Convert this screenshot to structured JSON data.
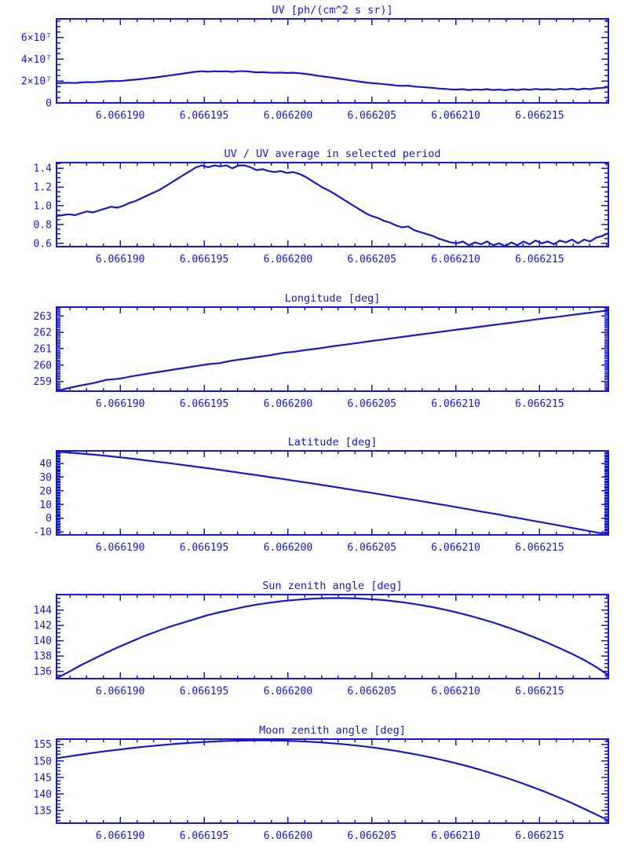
{
  "window": {
    "background": "#ffffff"
  },
  "style": {
    "plot_color": "#1717d2",
    "background": "#ffffff"
  },
  "chart_data": [
    {
      "id": "uv",
      "type": "line",
      "title": "UV [ph/(cm^2 s sr)]",
      "legend": "none",
      "grid": false,
      "x": {
        "lim": [
          6.0661862,
          6.0662191
        ],
        "major_ticks": [
          6.06619,
          6.066195,
          6.0662,
          6.066205,
          6.06621,
          6.066215
        ],
        "tick_labels": [
          "6.066190",
          "6.066195",
          "6.066200",
          "6.066205",
          "6.066210",
          "6.066215"
        ],
        "minor_step": 1e-06
      },
      "y": {
        "lim": [
          0,
          7.7
        ],
        "major_ticks": [
          0,
          2,
          4,
          6
        ],
        "tick_labels": [
          "0",
          "2×10⁷",
          "4×10⁷",
          "6×10⁷"
        ],
        "minor_step": 0.5,
        "values_unit": "10^7 ph/(cm^2 s sr)"
      },
      "values": [
        1.81,
        1.83,
        1.85,
        1.82,
        1.87,
        1.91,
        1.89,
        1.93,
        1.97,
        2.01,
        1.99,
        2.03,
        2.09,
        2.13,
        2.19,
        2.25,
        2.31,
        2.38,
        2.46,
        2.54,
        2.62,
        2.7,
        2.78,
        2.86,
        2.9,
        2.86,
        2.9,
        2.88,
        2.9,
        2.84,
        2.9,
        2.9,
        2.86,
        2.8,
        2.82,
        2.78,
        2.76,
        2.78,
        2.74,
        2.76,
        2.72,
        2.66,
        2.58,
        2.5,
        2.42,
        2.35,
        2.27,
        2.19,
        2.11,
        2.03,
        1.95,
        1.87,
        1.81,
        1.77,
        1.71,
        1.66,
        1.6,
        1.56,
        1.58,
        1.5,
        1.46,
        1.42,
        1.38,
        1.32,
        1.28,
        1.24,
        1.22,
        1.26,
        1.18,
        1.24,
        1.2,
        1.26,
        1.18,
        1.22,
        1.16,
        1.24,
        1.18,
        1.26,
        1.2,
        1.28,
        1.22,
        1.26,
        1.2,
        1.28,
        1.24,
        1.3,
        1.22,
        1.3,
        1.26,
        1.34,
        1.38,
        1.44
      ]
    },
    {
      "id": "uv_ratio",
      "type": "line",
      "title": "UV / UV average in selected period",
      "legend": "none",
      "grid": false,
      "x": {
        "lim": [
          6.0661862,
          6.0662191
        ],
        "major_ticks": [
          6.06619,
          6.066195,
          6.0662,
          6.066205,
          6.06621,
          6.066215
        ],
        "tick_labels": [
          "6.066190",
          "6.066195",
          "6.066200",
          "6.066205",
          "6.066210",
          "6.066215"
        ],
        "minor_step": 1e-06
      },
      "y": {
        "lim": [
          0.565,
          1.46
        ],
        "major_ticks": [
          0.6,
          0.8,
          1.0,
          1.2,
          1.4
        ],
        "tick_labels": [
          "0.6",
          "0.8",
          "1.0",
          "1.2",
          "1.4"
        ],
        "minor_step": 0.05
      },
      "values": [
        0.89,
        0.9,
        0.91,
        0.9,
        0.92,
        0.94,
        0.93,
        0.95,
        0.97,
        0.99,
        0.98,
        1.0,
        1.03,
        1.05,
        1.08,
        1.11,
        1.14,
        1.17,
        1.21,
        1.25,
        1.29,
        1.33,
        1.37,
        1.41,
        1.43,
        1.41,
        1.43,
        1.42,
        1.43,
        1.4,
        1.43,
        1.43,
        1.41,
        1.38,
        1.39,
        1.37,
        1.36,
        1.37,
        1.35,
        1.36,
        1.34,
        1.31,
        1.27,
        1.23,
        1.19,
        1.16,
        1.12,
        1.08,
        1.04,
        1.0,
        0.96,
        0.92,
        0.89,
        0.87,
        0.84,
        0.82,
        0.79,
        0.77,
        0.78,
        0.74,
        0.72,
        0.7,
        0.68,
        0.65,
        0.63,
        0.61,
        0.6,
        0.62,
        0.58,
        0.61,
        0.59,
        0.62,
        0.58,
        0.6,
        0.57,
        0.61,
        0.58,
        0.62,
        0.59,
        0.63,
        0.6,
        0.62,
        0.59,
        0.63,
        0.61,
        0.64,
        0.6,
        0.64,
        0.62,
        0.66,
        0.68,
        0.71
      ]
    },
    {
      "id": "longitude",
      "type": "line",
      "title": "Longitude [deg]",
      "legend": "none",
      "grid": false,
      "x": {
        "lim": [
          6.0661862,
          6.0662191
        ],
        "major_ticks": [
          6.06619,
          6.066195,
          6.0662,
          6.066205,
          6.06621,
          6.066215
        ],
        "tick_labels": [
          "6.066190",
          "6.066195",
          "6.066200",
          "6.066205",
          "6.066210",
          "6.066215"
        ],
        "minor_step": 1e-06
      },
      "y": {
        "lim": [
          258.4,
          263.55
        ],
        "major_ticks": [
          259,
          260,
          261,
          262,
          263
        ],
        "tick_labels": [
          "259",
          "260",
          "261",
          "262",
          "263"
        ],
        "minor_step": 0.1
      },
      "values": [
        258.4,
        258.6,
        258.76,
        258.9,
        259.1,
        259.16,
        259.31,
        259.44,
        259.56,
        259.68,
        259.8,
        259.92,
        260.04,
        260.12,
        260.27,
        260.38,
        260.49,
        260.6,
        260.74,
        260.82,
        260.93,
        261.03,
        261.15,
        261.25,
        261.35,
        261.46,
        261.56,
        261.67,
        261.77,
        261.87,
        261.97,
        262.07,
        262.18,
        262.27,
        262.37,
        262.47,
        262.57,
        262.67,
        262.77,
        262.87,
        262.96,
        263.06,
        263.16,
        263.25,
        263.35
      ]
    },
    {
      "id": "latitude",
      "type": "line",
      "title": "Latitude [deg]",
      "legend": "none",
      "grid": false,
      "x": {
        "lim": [
          6.0661862,
          6.0662191
        ],
        "major_ticks": [
          6.06619,
          6.066195,
          6.0662,
          6.066205,
          6.06621,
          6.066215
        ],
        "tick_labels": [
          "6.066190",
          "6.066195",
          "6.066200",
          "6.066205",
          "6.066210",
          "6.066215"
        ],
        "minor_step": 1e-06
      },
      "y": {
        "lim": [
          -12.2,
          49.2
        ],
        "major_ticks": [
          -10,
          0,
          10,
          20,
          30,
          40
        ],
        "tick_labels": [
          "-10",
          "0",
          "10",
          "20",
          "30",
          "40"
        ],
        "minor_step": 1
      },
      "values": [
        48.5,
        48.0,
        47.2,
        46.4,
        45.5,
        44.5,
        43.5,
        42.4,
        41.3,
        40.2,
        39.0,
        37.8,
        36.6,
        35.3,
        34.0,
        32.7,
        31.4,
        30.0,
        28.7,
        27.3,
        25.9,
        24.5,
        23.1,
        21.6,
        20.1,
        18.7,
        17.2,
        15.6,
        14.1,
        12.6,
        11.0,
        9.5,
        7.8,
        6.3,
        4.6,
        3.1,
        1.4,
        -0.2,
        -1.9,
        -3.5,
        -5.2,
        -6.9,
        -8.6,
        -10.3,
        -12.0
      ]
    },
    {
      "id": "sun_zenith",
      "type": "line",
      "title": "Sun zenith angle [deg]",
      "legend": "none",
      "grid": false,
      "x": {
        "lim": [
          6.0661862,
          6.0662191
        ],
        "major_ticks": [
          6.06619,
          6.066195,
          6.0662,
          6.066205,
          6.06621,
          6.066215
        ],
        "tick_labels": [
          "6.066190",
          "6.066195",
          "6.066200",
          "6.066205",
          "6.066210",
          "6.066215"
        ],
        "minor_step": 1e-06
      },
      "y": {
        "lim": [
          135.05,
          146.0
        ],
        "major_ticks": [
          136,
          138,
          140,
          142,
          144
        ],
        "tick_labels": [
          "136",
          "138",
          "140",
          "142",
          "144"
        ],
        "minor_step": 0.5
      },
      "values": [
        135.1,
        135.95,
        136.85,
        137.65,
        138.45,
        139.2,
        139.9,
        140.6,
        141.2,
        141.8,
        142.3,
        142.8,
        143.3,
        143.7,
        144.05,
        144.4,
        144.7,
        144.95,
        145.15,
        145.3,
        145.43,
        145.51,
        145.55,
        145.54,
        145.5,
        145.41,
        145.29,
        145.12,
        144.91,
        144.65,
        144.36,
        144.02,
        143.64,
        143.22,
        142.76,
        142.26,
        141.71,
        141.12,
        140.49,
        139.82,
        139.1,
        138.35,
        137.55,
        136.6,
        135.5
      ]
    },
    {
      "id": "moon_zenith",
      "type": "line",
      "title": "Moon zenith angle [deg]",
      "legend": "none",
      "grid": false,
      "x": {
        "lim": [
          6.0661862,
          6.0662191
        ],
        "major_ticks": [
          6.06619,
          6.066195,
          6.0662,
          6.066205,
          6.06621,
          6.066215
        ],
        "tick_labels": [
          "6.066190",
          "6.066195",
          "6.066200",
          "6.066205",
          "6.066210",
          "6.066215"
        ],
        "minor_step": 1e-06
      },
      "y": {
        "lim": [
          131.2,
          156.6
        ],
        "major_ticks": [
          135,
          140,
          145,
          150,
          155
        ],
        "tick_labels": [
          "135",
          "140",
          "145",
          "150",
          "155"
        ],
        "minor_step": 1
      },
      "values": [
        150.8,
        151.4,
        151.95,
        152.5,
        153.0,
        153.45,
        153.9,
        154.3,
        154.67,
        155.0,
        155.3,
        155.55,
        155.77,
        155.95,
        156.08,
        156.16,
        156.2,
        156.19,
        156.13,
        156.01,
        155.85,
        155.63,
        155.35,
        155.02,
        154.62,
        154.17,
        153.65,
        153.08,
        152.43,
        151.72,
        150.94,
        150.09,
        149.16,
        148.17,
        147.1,
        145.95,
        144.73,
        143.43,
        142.05,
        140.59,
        139.04,
        137.41,
        135.69,
        133.88,
        132.0
      ]
    }
  ]
}
